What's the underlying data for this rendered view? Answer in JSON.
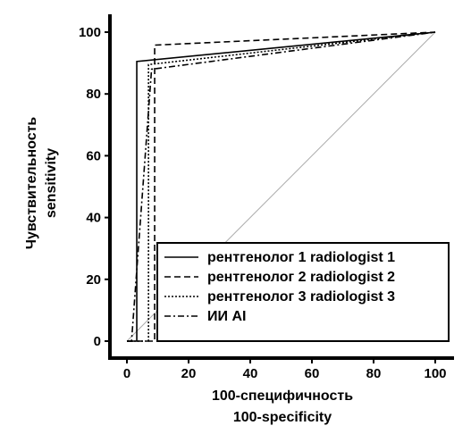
{
  "chart_data": {
    "type": "line",
    "xlabel": [
      "100-специфичность",
      "100-specificity"
    ],
    "ylabel": [
      "Чувствительность",
      "sensitivity"
    ],
    "xlim": [
      0,
      100
    ],
    "ylim": [
      0,
      100
    ],
    "x_ticks": [
      "0",
      "20",
      "40",
      "60",
      "80",
      "100"
    ],
    "y_ticks": [
      "0",
      "20",
      "40",
      "60",
      "80",
      "100"
    ],
    "grid": false,
    "legend_position": "bottom-right",
    "reference_line": {
      "x": [
        0,
        100
      ],
      "y": [
        0,
        100
      ],
      "color": "#aaaaaa"
    },
    "series": [
      {
        "name": "рентгенолог 1 radiologist 1",
        "style": "solid",
        "color": "#000000",
        "x": [
          0,
          3.2,
          3.2,
          100
        ],
        "y": [
          0,
          0,
          90.5,
          100
        ]
      },
      {
        "name": "рентгенолог 2 radiologist 2",
        "style": "dashed",
        "color": "#000000",
        "x": [
          0,
          9.0,
          9.0,
          100
        ],
        "y": [
          0,
          0,
          95.8,
          100
        ]
      },
      {
        "name": "рентгенолог 3 radiologist 3",
        "style": "dotted",
        "color": "#000000",
        "x": [
          0,
          7.0,
          7.0,
          100
        ],
        "y": [
          0,
          0,
          89.5,
          100
        ]
      },
      {
        "name": "ИИ AI",
        "style": "dashdot",
        "color": "#000000",
        "x": [
          0,
          1.5,
          8.0,
          100
        ],
        "y": [
          0,
          0,
          88.0,
          100
        ]
      }
    ]
  }
}
